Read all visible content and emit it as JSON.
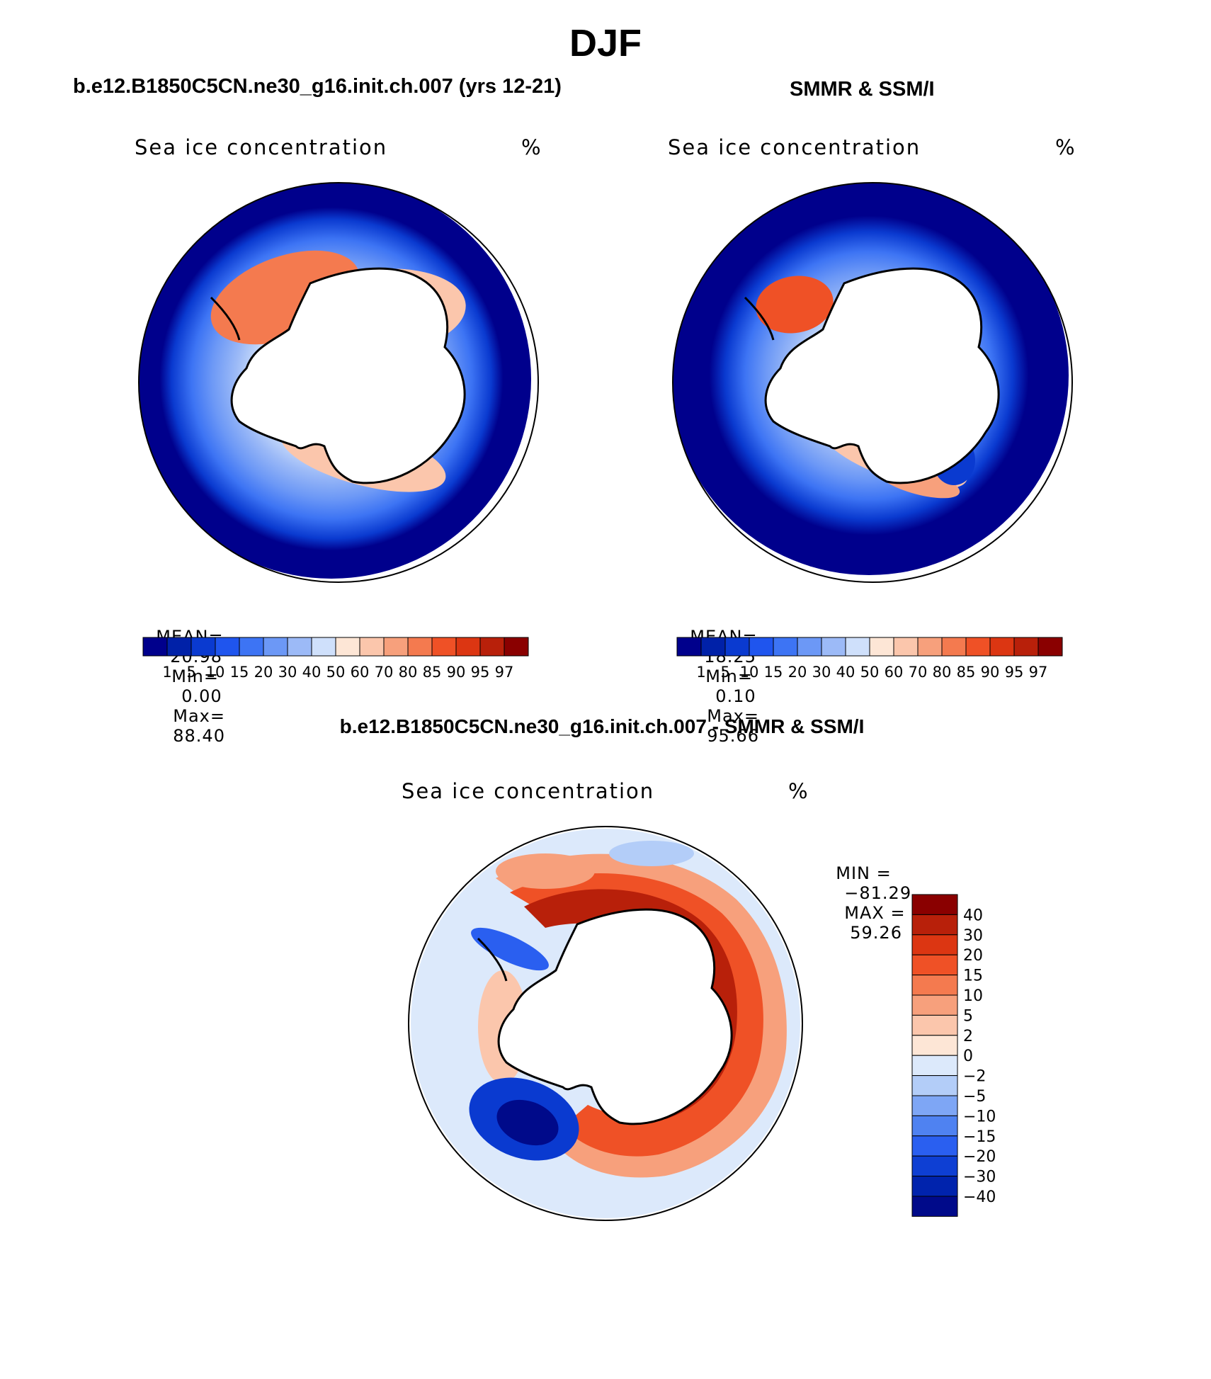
{
  "figure": {
    "title": "DJF"
  },
  "panels": {
    "model": {
      "title": "b.e12.B1850C5CN.ne30_g16.init.ch.007 (yrs 12-21)",
      "variable": "Sea ice concentration",
      "units": "%",
      "mean_label": "MEAN=",
      "mean_value": "20.98",
      "min_label": "Min=",
      "min_value": "0.00",
      "max_label": "Max=",
      "max_value": "88.40"
    },
    "obs": {
      "title": "SMMR & SSM/I",
      "variable": "Sea ice concentration",
      "units": "%",
      "mean_label": "MEAN=",
      "mean_value": "18.25",
      "min_label": "Min=",
      "min_value": "0.10",
      "max_label": "Max=",
      "max_value": "95.66"
    },
    "diff": {
      "title": "b.e12.B1850C5CN.ne30_g16.init.ch.007 - SMMR & SSM/I",
      "variable": "Sea ice concentration",
      "units": "%",
      "min_label": "MIN =",
      "min_value": "−81.29",
      "max_label": "MAX =",
      "max_value": "59.26"
    }
  },
  "chart_data": {
    "type": "map",
    "projection": "south-polar-stereographic",
    "region": "Antarctica / Southern Ocean",
    "season": "DJF",
    "concentration_colorbar": {
      "levels": [
        "1",
        "5",
        "10",
        "15",
        "20",
        "30",
        "40",
        "50",
        "60",
        "70",
        "80",
        "85",
        "90",
        "95",
        "97"
      ],
      "colors": [
        "#00008c",
        "#0021a8",
        "#0a3ad0",
        "#1f55ee",
        "#3d74f4",
        "#6c98f6",
        "#9cbaf7",
        "#cfe0fb",
        "#fde6d6",
        "#fbc6ac",
        "#f7a07c",
        "#f47a4f",
        "#ef5126",
        "#dc3612",
        "#b8200a",
        "#8a0000"
      ]
    },
    "difference_colorbar": {
      "levels": [
        "40",
        "30",
        "20",
        "15",
        "10",
        "5",
        "2",
        "0",
        "−2",
        "−5",
        "−10",
        "−15",
        "−20",
        "−30",
        "−40"
      ],
      "colors": [
        "#8a0000",
        "#b8200a",
        "#dc3612",
        "#ef5126",
        "#f47a4f",
        "#f7a07c",
        "#fbc6ac",
        "#fde6d6",
        "#dce9fb",
        "#b3cdf8",
        "#7ea6f5",
        "#4f82f1",
        "#2a5ff0",
        "#0e3fd3",
        "#0023ad",
        "#000a8a"
      ]
    }
  }
}
